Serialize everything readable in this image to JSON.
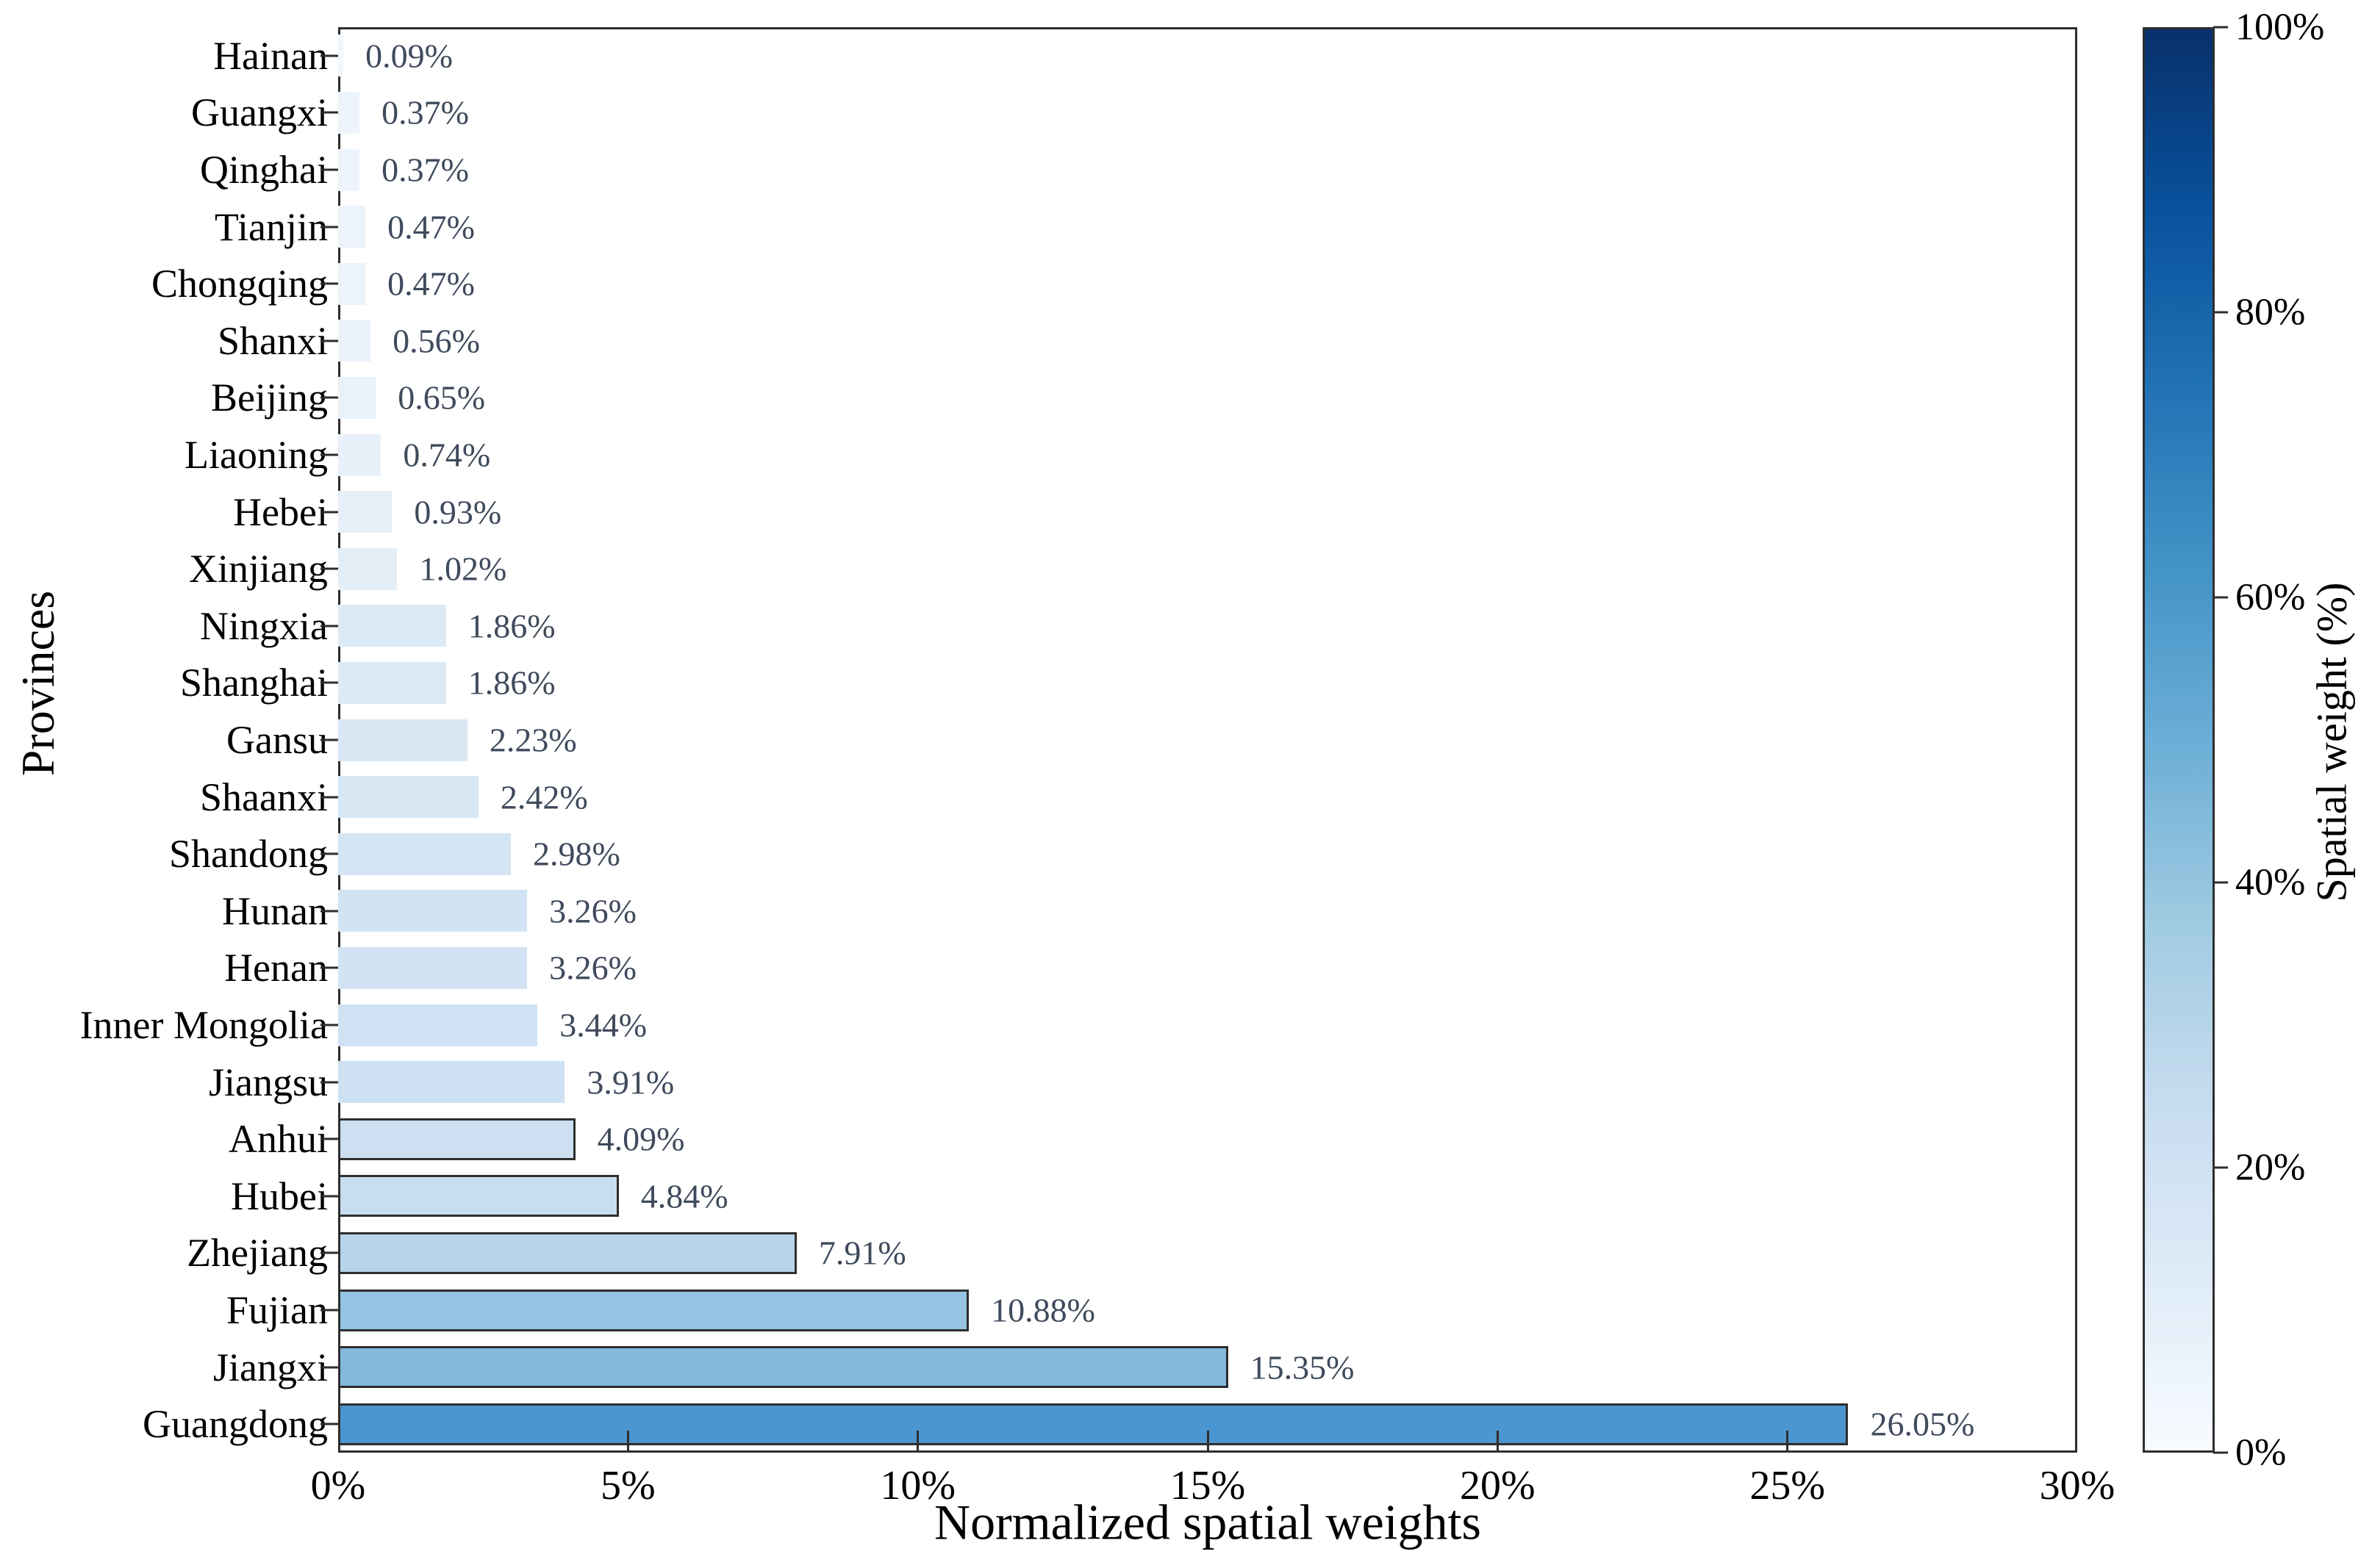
{
  "chart_data": {
    "type": "bar",
    "orientation": "horizontal",
    "title": "",
    "xlabel": "Normalized spatial weights",
    "ylabel": "Provinces",
    "xlim": [
      0,
      30
    ],
    "grid": false,
    "x_ticks": [
      {
        "value": 0,
        "label": "0%"
      },
      {
        "value": 5,
        "label": "5%"
      },
      {
        "value": 10,
        "label": "10%"
      },
      {
        "value": 15,
        "label": "15%"
      },
      {
        "value": 20,
        "label": "20%"
      },
      {
        "value": 25,
        "label": "25%"
      },
      {
        "value": 30,
        "label": "30%"
      }
    ],
    "categories": [
      "Hainan",
      "Guangxi",
      "Qinghai",
      "Tianjin",
      "Chongqing",
      "Shanxi",
      "Beijing",
      "Liaoning",
      "Hebei",
      "Xinjiang",
      "Ningxia",
      "Shanghai",
      "Gansu",
      "Shaanxi",
      "Shandong",
      "Hunan",
      "Henan",
      "Inner Mongolia",
      "Jiangsu",
      "Anhui",
      "Hubei",
      "Zhejiang",
      "Fujian",
      "Jiangxi",
      "Guangdong"
    ],
    "values": [
      0.09,
      0.37,
      0.37,
      0.47,
      0.47,
      0.56,
      0.65,
      0.74,
      0.93,
      1.02,
      1.86,
      1.86,
      2.23,
      2.42,
      2.98,
      3.26,
      3.26,
      3.44,
      3.91,
      4.09,
      4.84,
      7.91,
      10.88,
      15.35,
      26.05
    ],
    "bar_labels": [
      "0.09%",
      "0.37%",
      "0.37%",
      "0.47%",
      "0.47%",
      "0.56%",
      "0.65%",
      "0.74%",
      "0.93%",
      "1.02%",
      "1.86%",
      "1.86%",
      "2.23%",
      "2.42%",
      "2.98%",
      "3.26%",
      "3.26%",
      "3.44%",
      "3.91%",
      "4.09%",
      "4.84%",
      "7.91%",
      "10.88%",
      "15.35%",
      "26.05%"
    ],
    "bar_colors": [
      "#f1f7fc",
      "#eef4fb",
      "#eef4fb",
      "#ecf3fa",
      "#ecf3fa",
      "#ebf2fa",
      "#e9f1f9",
      "#e8f0f9",
      "#e6eff8",
      "#e3eef7",
      "#dceaf5",
      "#dceaf5",
      "#d9e8f5",
      "#d7e7f4",
      "#d4e5f4",
      "#d2e4f3",
      "#d2e4f3",
      "#d0e2f3",
      "#cee1f2",
      "#cde0f2",
      "#c9ddf0",
      "#b6d4ea",
      "#93c4e1",
      "#83badc",
      "#4b95d0"
    ],
    "bar_outlined": [
      false,
      false,
      false,
      false,
      false,
      false,
      false,
      false,
      false,
      false,
      false,
      false,
      false,
      false,
      false,
      false,
      false,
      false,
      false,
      true,
      true,
      true,
      true,
      true,
      true
    ],
    "colorbar": {
      "label": "Spatial weight (%)",
      "range": [
        0,
        100
      ],
      "ticks": [
        {
          "value": 0,
          "label": "0%"
        },
        {
          "value": 20,
          "label": "20%"
        },
        {
          "value": 40,
          "label": "40%"
        },
        {
          "value": 60,
          "label": "60%"
        },
        {
          "value": 80,
          "label": "80%"
        },
        {
          "value": 100,
          "label": "100%"
        }
      ],
      "gradient_low_to_high": [
        "#f7fbff",
        "#deebf7",
        "#c6dbef",
        "#9ecae1",
        "#6baed6",
        "#4292c6",
        "#2171b5",
        "#08519c",
        "#08306b"
      ]
    }
  },
  "colors": {
    "spine": "#2e2e2e",
    "bar_edge": "#2e2e2e",
    "tick": "#2e2e2e",
    "axis_text": "#000000",
    "value_label_text": "#3f4a5c",
    "background": "#ffffff"
  }
}
